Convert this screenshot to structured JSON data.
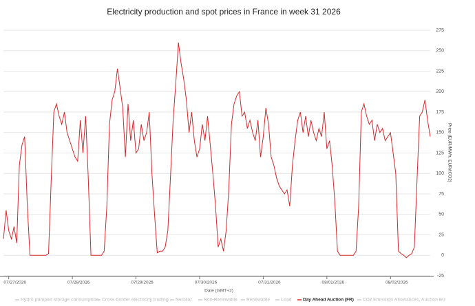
{
  "chart_data": {
    "type": "line",
    "title": "Electricity production and spot prices in France in week 31 2026",
    "x_label": "Date (GMT+2)",
    "y_label": "Price (EUR/MWh, EUR/tCO2)",
    "x": [
      0,
      1,
      2,
      3,
      4,
      5,
      6,
      7,
      8,
      9,
      10,
      11,
      12,
      13,
      14,
      15,
      16,
      17,
      18,
      19,
      20,
      21,
      22,
      23,
      24,
      25,
      26,
      27,
      28,
      29,
      30,
      31,
      32,
      33,
      34,
      35,
      36,
      37,
      38,
      39,
      40,
      41,
      42,
      43,
      44,
      45,
      46,
      47,
      48,
      49,
      50,
      51,
      52,
      53,
      54,
      55,
      56,
      57,
      58,
      59,
      60,
      61,
      62,
      63,
      64,
      65,
      66,
      67,
      68,
      69,
      70,
      71,
      72,
      73,
      74,
      75,
      76,
      77,
      78,
      79,
      80,
      81,
      82,
      83,
      84,
      85,
      86,
      87,
      88,
      89,
      90,
      91,
      92,
      93,
      94,
      95,
      96,
      97,
      98,
      99,
      100,
      101,
      102,
      103,
      104,
      105,
      106,
      107,
      108,
      109,
      110,
      111,
      112,
      113,
      114,
      115,
      116,
      117,
      118,
      119,
      120,
      121,
      122,
      123,
      124,
      125,
      126,
      127,
      128,
      129,
      130,
      131,
      132,
      133,
      134,
      135,
      136,
      137,
      138,
      139,
      140,
      141,
      142,
      143,
      144,
      145,
      146,
      147,
      148,
      149,
      150,
      151,
      152,
      153,
      154,
      155,
      156,
      157,
      158,
      159,
      160,
      161
    ],
    "series": [
      {
        "name": "Hydro pumped storage consumption",
        "color": "#cccccc",
        "visible": false
      },
      {
        "name": "Cross border electricity trading",
        "color": "#cccccc",
        "visible": false
      },
      {
        "name": "Nuclear",
        "color": "#cccccc",
        "visible": false
      },
      {
        "name": "Non-Renewable",
        "color": "#cccccc",
        "visible": false
      },
      {
        "name": "Renewable",
        "color": "#cccccc",
        "visible": false
      },
      {
        "name": "Load",
        "color": "#cccccc",
        "visible": false
      },
      {
        "name": "Day Ahead Auction (FR)",
        "color": "#d62728",
        "visible": true,
        "values": [
          20,
          55,
          30,
          20,
          35,
          15,
          110,
          135,
          145,
          60,
          0,
          0,
          0,
          0,
          0,
          0,
          0,
          2,
          90,
          175,
          185,
          170,
          160,
          175,
          150,
          140,
          130,
          120,
          115,
          165,
          125,
          170,
          95,
          0,
          0,
          0,
          0,
          0,
          5,
          60,
          160,
          190,
          200,
          228,
          205,
          180,
          120,
          185,
          140,
          165,
          125,
          130,
          160,
          140,
          150,
          175,
          100,
          50,
          3,
          5,
          5,
          10,
          30,
          95,
          165,
          210,
          260,
          235,
          215,
          190,
          150,
          175,
          140,
          120,
          130,
          160,
          140,
          170,
          135,
          100,
          60,
          10,
          20,
          5,
          30,
          80,
          160,
          185,
          195,
          200,
          170,
          175,
          155,
          165,
          150,
          140,
          165,
          120,
          145,
          180,
          160,
          120,
          110,
          95,
          85,
          80,
          75,
          80,
          60,
          110,
          140,
          165,
          175,
          150,
          170,
          145,
          165,
          150,
          140,
          155,
          145,
          175,
          130,
          140,
          110,
          65,
          5,
          0,
          0,
          0,
          0,
          0,
          0,
          5,
          60,
          175,
          185,
          170,
          160,
          165,
          140,
          160,
          150,
          155,
          140,
          145,
          150,
          125,
          100,
          5,
          2,
          0,
          -3,
          0,
          2,
          10,
          90,
          170,
          175,
          190,
          165,
          145
        ]
      },
      {
        "name": "CO2 Emission Allowances, Auction EU",
        "color": "#cccccc",
        "visible": false
      }
    ],
    "xlim": [
      0,
      161
    ],
    "xticks": [
      {
        "value": 2,
        "label": "07/27/2026"
      },
      {
        "value": 26,
        "label": "07/28/2026"
      },
      {
        "value": 50,
        "label": "07/29/2026"
      },
      {
        "value": 74,
        "label": "07/30/2026"
      },
      {
        "value": 98,
        "label": "07/31/2026"
      },
      {
        "value": 122,
        "label": "08/01/2026"
      },
      {
        "value": 146,
        "label": "08/02/2026"
      }
    ],
    "ylim": [
      -25,
      275
    ],
    "yticks": [
      -25,
      0,
      25,
      50,
      75,
      100,
      125,
      150,
      175,
      200,
      225,
      250,
      275
    ],
    "grid": true
  }
}
